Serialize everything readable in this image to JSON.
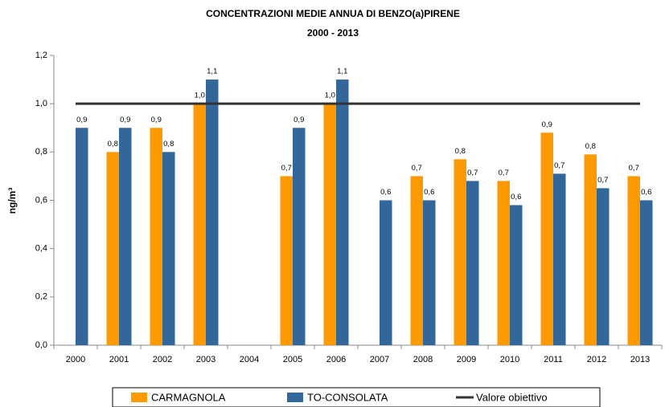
{
  "chart_data": {
    "type": "bar",
    "title": "CONCENTRAZIONI MEDIE ANNUA DI BENZO(a)PIRENE",
    "subtitle": "2000 - 2013",
    "y_label": "ng/m³",
    "categories": [
      "2000",
      "2001",
      "2002",
      "2003",
      "2004",
      "2005",
      "2006",
      "2007",
      "2008",
      "2009",
      "2010",
      "2011",
      "2012",
      "2013"
    ],
    "series": [
      {
        "name": "CARMAGNOLA",
        "type": "bar",
        "color": "#ff9900",
        "values": [
          null,
          0.8,
          0.9,
          1.0,
          null,
          0.7,
          1.0,
          null,
          0.7,
          0.77,
          0.68,
          0.88,
          0.79,
          0.7
        ],
        "value_labels": [
          null,
          "0,8",
          "0,9",
          "1,0",
          null,
          "0,7",
          "1,0",
          null,
          "0,7",
          "0,8",
          "0,7",
          "0,9",
          "0,8",
          "0,7"
        ]
      },
      {
        "name": "TO-CONSOLATA",
        "type": "bar",
        "color": "#336699",
        "values": [
          0.9,
          0.9,
          0.8,
          1.1,
          null,
          0.9,
          1.1,
          0.6,
          0.6,
          0.68,
          0.58,
          0.71,
          0.65,
          0.6
        ],
        "value_labels": [
          "0,9",
          "0,9",
          "0,8",
          "1,1",
          null,
          "0,9",
          "1,1",
          "0,6",
          "0,6",
          "0,7",
          "0,6",
          "0,7",
          "0,7",
          "0,6"
        ]
      },
      {
        "name": "Valore obiettivo",
        "type": "line",
        "color": "#333333",
        "values": [
          1.0,
          1.0,
          1.0,
          1.0,
          1.0,
          1.0,
          1.0,
          1.0,
          1.0,
          1.0,
          1.0,
          1.0,
          1.0,
          1.0
        ]
      }
    ],
    "ylim": [
      0,
      1.2
    ],
    "yticks": [
      {
        "value": 0,
        "label": "0,0"
      },
      {
        "value": 0.2,
        "label": "0,2"
      },
      {
        "value": 0.4,
        "label": "0,4"
      },
      {
        "value": 0.6,
        "label": "0,6"
      },
      {
        "value": 0.8,
        "label": "0,8"
      },
      {
        "value": 1.0,
        "label": "1,0"
      },
      {
        "value": 1.2,
        "label": "1,2"
      }
    ],
    "grid": false,
    "legend": "bottom"
  }
}
